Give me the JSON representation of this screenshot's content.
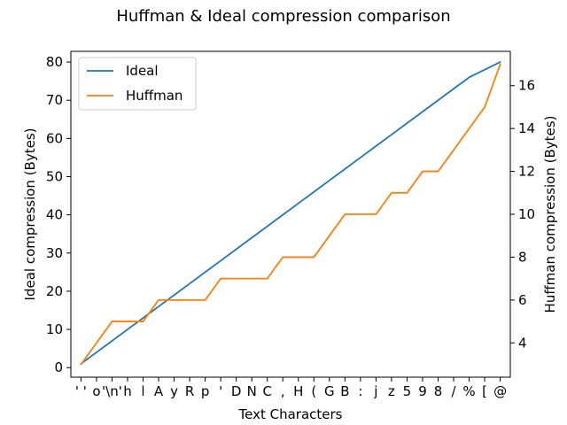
{
  "chart_data": {
    "type": "line",
    "title": "Huffman & Ideal compression comparison",
    "xlabel": "Text Characters",
    "ylabel_left": "Ideal compression (Bytes)",
    "ylabel_right": "Huffman compression (Bytes)",
    "categories": [
      "' '",
      "o",
      "'\\n'",
      "h",
      "l",
      "A",
      "y",
      "R",
      "p",
      "'",
      "D",
      "N",
      "C",
      ",",
      "H",
      "(",
      "G",
      "B",
      ":",
      "j",
      "z",
      "5",
      "9",
      "8",
      "/",
      "%",
      "[",
      "@"
    ],
    "category_tick_labels": [
      "' '",
      "o",
      "'\\n'",
      "h",
      "l",
      "A",
      "y",
      "R",
      "p",
      "'",
      "D",
      "N",
      "C",
      ",",
      "H",
      "(",
      "G",
      "B",
      ":",
      "j",
      "z",
      "5",
      "9",
      "8",
      "/",
      "%",
      "[",
      "@"
    ],
    "ylim_left": [
      -2.5,
      82.8
    ],
    "yticks_left": [
      0,
      10,
      20,
      30,
      40,
      50,
      60,
      70,
      80
    ],
    "ylim_right": [
      2.4,
      17.6
    ],
    "yticks_right": [
      4,
      6,
      8,
      10,
      12,
      14,
      16
    ],
    "series": [
      {
        "name": "Ideal",
        "axis": "left",
        "color": "#1f77b4",
        "values": [
          1,
          4,
          7,
          10,
          13,
          16,
          19,
          22,
          25,
          28,
          31,
          34,
          37,
          40,
          43,
          46,
          49,
          52,
          55,
          58,
          61,
          64,
          67,
          70,
          73,
          76,
          78,
          80
        ]
      },
      {
        "name": "Huffman",
        "axis": "right",
        "color": "#ff7f0e",
        "values": [
          3,
          4,
          5,
          5,
          5,
          6,
          6,
          6,
          6,
          7,
          7,
          7,
          7,
          8,
          8,
          8,
          9,
          10,
          10,
          10,
          11,
          11,
          12,
          12,
          13,
          14,
          15,
          17
        ]
      }
    ],
    "legend": {
      "position": "top-left",
      "entries": [
        "Ideal",
        "Huffman"
      ]
    },
    "grid": false
  }
}
